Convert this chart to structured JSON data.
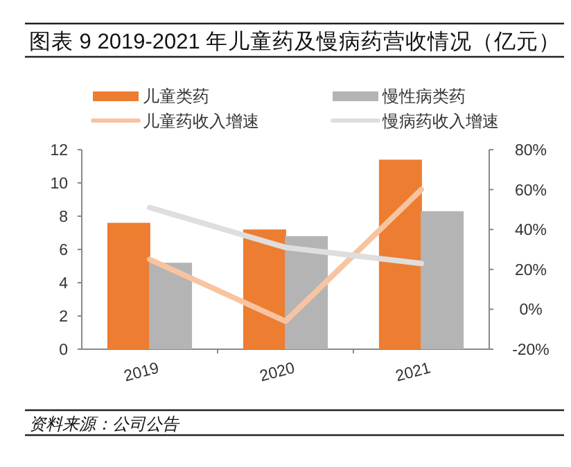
{
  "chart_data": {
    "type": "bar",
    "title": "图表 9 2019-2021 年儿童药及慢病药营收情况（亿元）",
    "categories": [
      "2019",
      "2020",
      "2021"
    ],
    "series": [
      {
        "name": "儿童类药",
        "color": "#ed7d31",
        "values": [
          7.6,
          7.2,
          11.4
        ]
      },
      {
        "name": "慢性病类药",
        "color": "#b4b4b4",
        "values": [
          5.2,
          6.8,
          8.3
        ]
      },
      {
        "name": "儿童药收入增速",
        "type": "line",
        "axis": "y2",
        "color": "#f8c4a0",
        "values": [
          25,
          -6,
          60
        ]
      },
      {
        "name": "慢病药收入增速",
        "type": "line",
        "axis": "y2",
        "color": "#dedede",
        "values": [
          51,
          31,
          23
        ]
      }
    ],
    "ylim": [
      0,
      12
    ],
    "yticks": [
      0,
      2,
      4,
      6,
      8,
      10,
      12
    ],
    "y2lim": [
      -20,
      80
    ],
    "y2ticks": [
      {
        "value": -20,
        "label": "-20%"
      },
      {
        "value": 0,
        "label": "0%"
      },
      {
        "value": 20,
        "label": "20%"
      },
      {
        "value": 40,
        "label": "40%"
      },
      {
        "value": 60,
        "label": "60%"
      },
      {
        "value": 80,
        "label": "80%"
      }
    ],
    "legend": "top",
    "grid": false,
    "annotations": [
      "资料来源：公司公告"
    ]
  }
}
